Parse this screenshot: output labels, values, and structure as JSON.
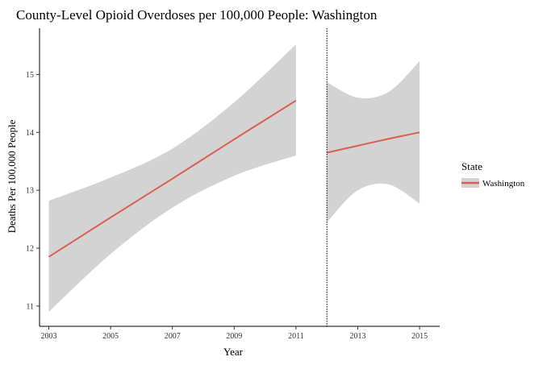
{
  "chart_data": {
    "type": "line",
    "title": "County-Level Opioid Overdoses per 100,000 People: Washington",
    "xlabel": "Year",
    "ylabel": "Deaths Per 100,000 People",
    "xlim": [
      2002.7,
      2015.65
    ],
    "ylim": [
      10.65,
      15.8
    ],
    "x_ticks": [
      2003,
      2005,
      2007,
      2009,
      2011,
      2013,
      2015
    ],
    "y_ticks": [
      11,
      12,
      13,
      14,
      15
    ],
    "grid": false,
    "vline_x": 2012,
    "legend": {
      "title": "State",
      "placement": "right",
      "entries": [
        "Washington"
      ]
    },
    "colors": {
      "line": "#d9604f",
      "ribbon": "#d3d3d3"
    },
    "series": [
      {
        "name": "Washington",
        "segments": [
          {
            "x": [
              2003,
              2005,
              2007,
              2009,
              2011
            ],
            "y": [
              11.85,
              12.53,
              13.2,
              13.88,
              14.55
            ],
            "lower": [
              10.9,
              11.9,
              12.7,
              13.25,
              13.6
            ],
            "upper": [
              12.82,
              13.22,
              13.72,
              14.52,
              15.52
            ]
          },
          {
            "x": [
              2012,
              2013,
              2014,
              2015
            ],
            "y": [
              13.65,
              13.77,
              13.89,
              14.0
            ],
            "lower": [
              12.45,
              13.0,
              13.1,
              12.77
            ],
            "upper": [
              14.87,
              14.6,
              14.7,
              15.23
            ]
          }
        ]
      }
    ]
  }
}
